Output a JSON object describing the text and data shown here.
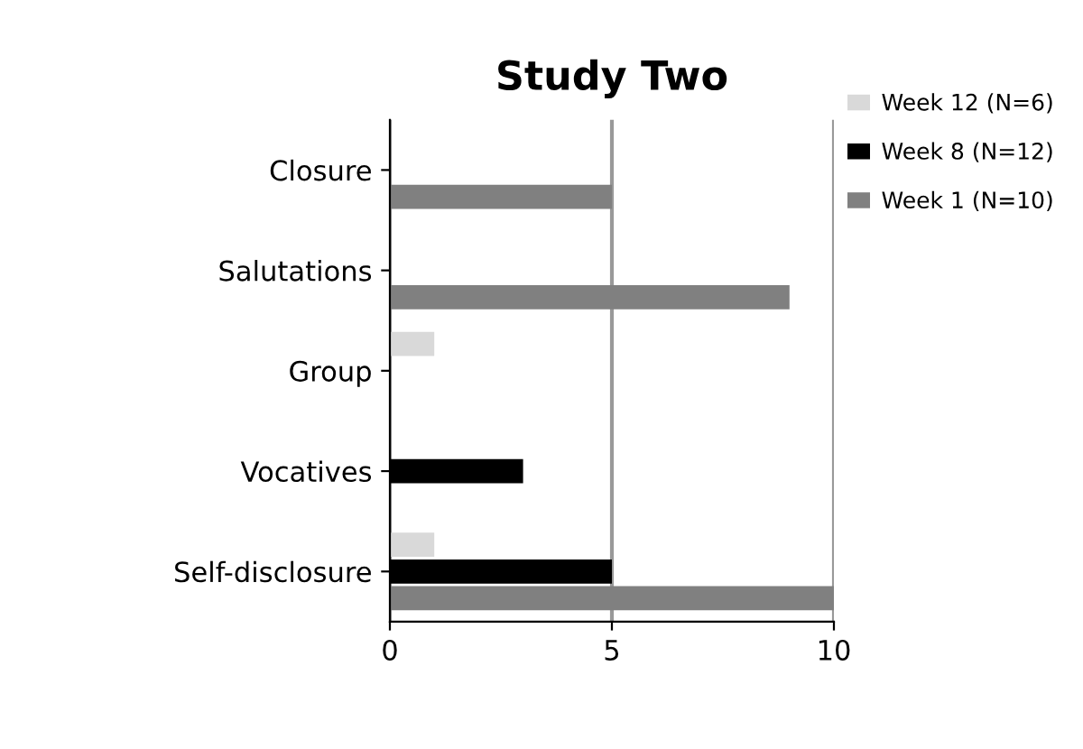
{
  "chart_data": {
    "type": "bar",
    "orientation": "horizontal",
    "title": "Study Two",
    "categories": [
      "Closure",
      "Salutations",
      "Group",
      "Vocatives",
      "Self-disclosure"
    ],
    "series": [
      {
        "name": "Week 12 (N=6)",
        "color": "#d9d9d9",
        "values": [
          0,
          0,
          1,
          0,
          1
        ]
      },
      {
        "name": "Week 8 (N=12)",
        "color": "#000000",
        "values": [
          0,
          0,
          0,
          3,
          5
        ]
      },
      {
        "name": "Week 1 (N=10)",
        "color": "#808080",
        "values": [
          5,
          9,
          0,
          0,
          10
        ]
      }
    ],
    "xlim": [
      0,
      10
    ],
    "xticks": [
      0,
      5,
      10
    ],
    "grid": "x",
    "legend": "top right"
  }
}
